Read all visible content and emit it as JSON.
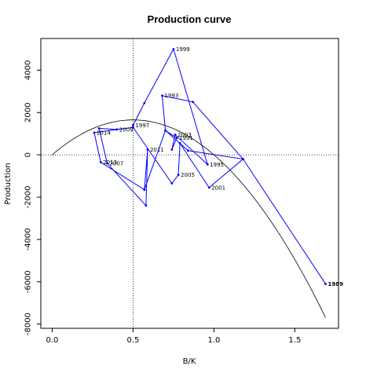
{
  "chart_data": {
    "type": "line",
    "title": "Production curve",
    "xlabel": "B/K",
    "ylabel": "Production",
    "xlim": [
      -0.07,
      1.77
    ],
    "ylim": [
      -8200,
      5500
    ],
    "x_ticks": [
      0.0,
      0.5,
      1.0,
      1.5
    ],
    "x_tick_labels": [
      "0.0",
      "0.5",
      "1.0",
      "1.5"
    ],
    "y_ticks": [
      -8000,
      -6000,
      -4000,
      -2000,
      0,
      2000,
      4000
    ],
    "y_tick_labels": [
      "-8000",
      "-6000",
      "-4000",
      "-2000",
      "0",
      "2000",
      "4000"
    ],
    "reference_lines": {
      "x": 0.5,
      "y": 0,
      "style": "dotted"
    },
    "curve": {
      "kind": "quadratic",
      "x_range": [
        0.0,
        1.69
      ],
      "peak_x": 0.5,
      "peak_y": 1650,
      "color": "#000000"
    },
    "series": [
      {
        "color": "#0000ff",
        "points": [
          {
            "x": 1.69,
            "y": -6100,
            "label": "1989"
          },
          {
            "x": 1.18,
            "y": -200,
            "label": ""
          },
          {
            "x": 0.87,
            "y": 2500,
            "label": ""
          },
          {
            "x": 0.68,
            "y": 2800,
            "label": "1993"
          },
          {
            "x": 0.7,
            "y": 1150,
            "label": ""
          },
          {
            "x": 0.77,
            "y": 800,
            "label": "1991"
          },
          {
            "x": 0.74,
            "y": 250,
            "label": ""
          },
          {
            "x": 0.76,
            "y": 950,
            "label": "2003"
          },
          {
            "x": 0.96,
            "y": -450,
            "label": "1995"
          },
          {
            "x": 0.75,
            "y": 5000,
            "label": "1999"
          },
          {
            "x": 0.57,
            "y": 2450,
            "label": ""
          },
          {
            "x": 0.5,
            "y": 1400,
            "label": "1997"
          },
          {
            "x": 0.5,
            "y": 1300,
            "label": ""
          },
          {
            "x": 0.74,
            "y": -1350,
            "label": ""
          },
          {
            "x": 0.78,
            "y": -950,
            "label": "2005"
          },
          {
            "x": 0.79,
            "y": 550,
            "label": ""
          },
          {
            "x": 0.97,
            "y": -1550,
            "label": "2001"
          },
          {
            "x": 1.18,
            "y": -200,
            "label": ""
          },
          {
            "x": 0.84,
            "y": 200,
            "label": ""
          },
          {
            "x": 0.7,
            "y": 1150,
            "label": ""
          },
          {
            "x": 0.57,
            "y": -1650,
            "label": ""
          },
          {
            "x": 0.59,
            "y": 250,
            "label": "2011"
          },
          {
            "x": 0.58,
            "y": -2400,
            "label": ""
          },
          {
            "x": 0.34,
            "y": -400,
            "label": "2007"
          },
          {
            "x": 0.29,
            "y": 1250,
            "label": ""
          },
          {
            "x": 0.4,
            "y": 1200,
            "label": "2009"
          },
          {
            "x": 0.5,
            "y": 1300,
            "label": ""
          },
          {
            "x": 0.26,
            "y": 1050,
            "label": "2014"
          },
          {
            "x": 0.3,
            "y": -350,
            "label": "2013"
          },
          {
            "x": 0.57,
            "y": -1650,
            "label": ""
          }
        ]
      }
    ]
  }
}
